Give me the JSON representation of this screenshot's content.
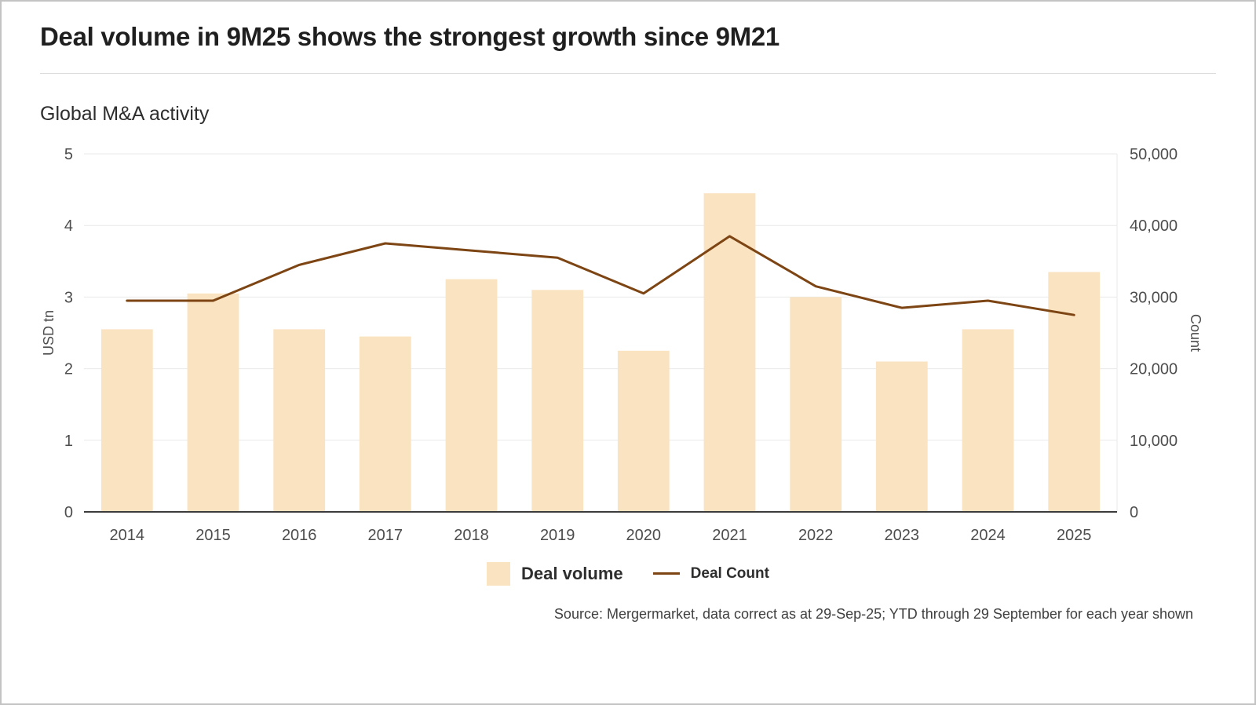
{
  "page": {
    "title": "Deal volume in 9M25 shows the strongest growth since 9M21",
    "subtitle": "Global M&A activity",
    "source": "Source: Mergermarket, data correct as at 29-Sep-25; YTD through 29 September for each year shown"
  },
  "legend": {
    "bar_label": "Deal volume",
    "line_label": "Deal Count"
  },
  "colors": {
    "bar": "#fae3c0",
    "line": "#7d4513",
    "grid": "#e9e9e9",
    "baseline": "#3c3c3c",
    "tick_text": "#4d4d4d"
  },
  "chart_data": {
    "type": "bar+line",
    "title": "Global M&A activity",
    "categories": [
      "2014",
      "2015",
      "2016",
      "2017",
      "2018",
      "2019",
      "2020",
      "2021",
      "2022",
      "2023",
      "2024",
      "2025"
    ],
    "series": [
      {
        "name": "Deal volume",
        "type": "bar",
        "axis": "left",
        "values": [
          2.55,
          3.05,
          2.55,
          2.45,
          3.25,
          3.1,
          2.25,
          4.45,
          3.0,
          2.1,
          2.55,
          3.35
        ]
      },
      {
        "name": "Deal Count",
        "type": "line",
        "axis": "right",
        "values": [
          29500,
          29500,
          34500,
          37500,
          36500,
          35500,
          30500,
          38500,
          31500,
          28500,
          29500,
          27500
        ]
      }
    ],
    "left_axis": {
      "label": "USD tn",
      "min": 0,
      "max": 5,
      "ticks": [
        0,
        1,
        2,
        3,
        4,
        5
      ]
    },
    "right_axis": {
      "label": "Count",
      "min": 0,
      "max": 50000,
      "ticks": [
        0,
        10000,
        20000,
        30000,
        40000,
        50000
      ]
    },
    "grid": true,
    "legend_position": "bottom"
  }
}
